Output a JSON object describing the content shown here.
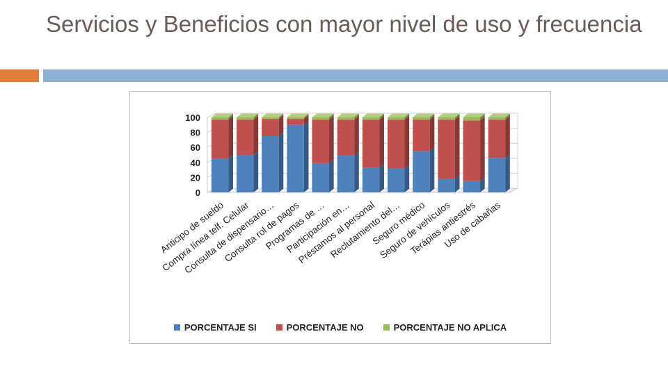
{
  "slide": {
    "title": "Servicios y Beneficios con mayor nivel de uso y frecuencia"
  },
  "colors": {
    "accent_orange": "#e07b39",
    "accent_blue": "#8fb0d4",
    "series_si": "#4f81bd",
    "series_no": "#c0504d",
    "series_na": "#9bbb59"
  },
  "chart_data": {
    "type": "bar",
    "stacked": true,
    "three_d": true,
    "categories": [
      "Anticipo de sueldo",
      "Compra línea telf. Celular",
      "Consulta de dispensario…",
      "Consulta rol de pagos",
      "Programas de …",
      "Participación en…",
      "Préstamos al personal",
      "Reclutamiento del…",
      "Seguro médico",
      "Seguro de vehículos",
      "Terápias antiestrés",
      "Uso de cabañas"
    ],
    "series": [
      {
        "name": "PORCENTAJE SI",
        "values": [
          45,
          50,
          75,
          90,
          39,
          49,
          33,
          32,
          55,
          18,
          15,
          46
        ]
      },
      {
        "name": "PORCENTAJE NO",
        "values": [
          52,
          47,
          23,
          8,
          58,
          48,
          64,
          65,
          42,
          79,
          81,
          51
        ]
      },
      {
        "name": "PORCENTAJE NO APLICA",
        "values": [
          3,
          3,
          2,
          2,
          3,
          3,
          3,
          3,
          3,
          3,
          4,
          3
        ]
      }
    ],
    "yticks": [
      0,
      20,
      40,
      60,
      80,
      100
    ],
    "ylim": [
      0,
      100
    ],
    "legend_position": "bottom",
    "grid": true
  }
}
